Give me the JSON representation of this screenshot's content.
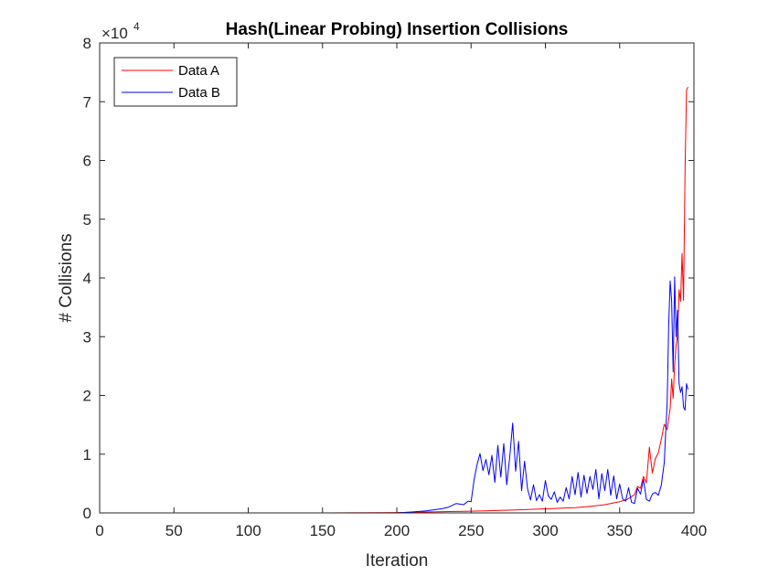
{
  "chart_data": {
    "type": "line",
    "title": "Hash(Linear Probing) Insertion Collisions",
    "xlabel": "Iteration",
    "ylabel": "# Collisions",
    "xlim": [
      0,
      400
    ],
    "ylim": [
      0,
      80000
    ],
    "xticks": [
      0,
      50,
      100,
      150,
      200,
      250,
      300,
      350,
      400
    ],
    "yticks": [
      0,
      1,
      2,
      3,
      4,
      5,
      6,
      7,
      8
    ],
    "y_multiplier": "×10",
    "y_exponent": "4",
    "grid": false,
    "legend_position": "top-left",
    "series": [
      {
        "name": "Data A",
        "color": "#ff0000",
        "x": [
          0,
          50,
          100,
          150,
          200,
          220,
          240,
          260,
          280,
          300,
          320,
          330,
          340,
          350,
          355,
          360,
          362,
          364,
          366,
          368,
          370,
          372,
          374,
          376,
          378,
          380,
          382,
          384,
          385,
          386,
          387,
          388,
          389,
          390,
          391,
          392,
          393,
          394,
          395,
          396
        ],
        "y": [
          0,
          0,
          0,
          0,
          60,
          150,
          250,
          350,
          500,
          700,
          900,
          1100,
          1400,
          1900,
          2300,
          3100,
          4500,
          4200,
          6200,
          5100,
          11200,
          6800,
          9200,
          10200,
          12500,
          15100,
          14200,
          17800,
          22800,
          19500,
          25200,
          28500,
          30500,
          38000,
          36000,
          44200,
          36200,
          58000,
          72000,
          72500
        ]
      },
      {
        "name": "Data B",
        "color": "#0000ff",
        "x": [
          0,
          50,
          100,
          150,
          200,
          210,
          220,
          230,
          235,
          240,
          245,
          248,
          250,
          252,
          254,
          256,
          258,
          260,
          262,
          264,
          266,
          268,
          270,
          272,
          274,
          276,
          278,
          280,
          282,
          284,
          286,
          288,
          290,
          292,
          294,
          296,
          298,
          300,
          302,
          304,
          306,
          308,
          310,
          312,
          314,
          316,
          318,
          320,
          322,
          324,
          326,
          328,
          330,
          332,
          334,
          336,
          338,
          340,
          342,
          344,
          346,
          348,
          350,
          352,
          354,
          356,
          358,
          360,
          362,
          364,
          366,
          368,
          370,
          372,
          374,
          376,
          378,
          380,
          382,
          383,
          384,
          385,
          386,
          387,
          388,
          389,
          390,
          391,
          392,
          393,
          394,
          395,
          396
        ],
        "y": [
          0,
          0,
          0,
          0,
          0,
          150,
          350,
          700,
          1000,
          1600,
          1400,
          2000,
          1900,
          5600,
          8200,
          10100,
          7200,
          9100,
          6500,
          9800,
          5200,
          11500,
          6100,
          11800,
          4800,
          9500,
          15300,
          7100,
          12200,
          3800,
          8800,
          4100,
          2200,
          4800,
          2100,
          3100,
          2000,
          5500,
          2900,
          2300,
          3600,
          1800,
          2700,
          2000,
          4300,
          2400,
          6200,
          3100,
          6900,
          2700,
          6400,
          3300,
          6200,
          4000,
          7400,
          2400,
          6700,
          3800,
          7400,
          3000,
          6300,
          2400,
          4900,
          2400,
          2000,
          4300,
          1800,
          1600,
          4200,
          3200,
          5700,
          2300,
          2000,
          3200,
          3500,
          3000,
          4700,
          8500,
          19000,
          32000,
          39500,
          36000,
          24000,
          40200,
          30000,
          34500,
          22000,
          20500,
          21500,
          18000,
          17500,
          22000,
          21000
        ]
      }
    ]
  }
}
